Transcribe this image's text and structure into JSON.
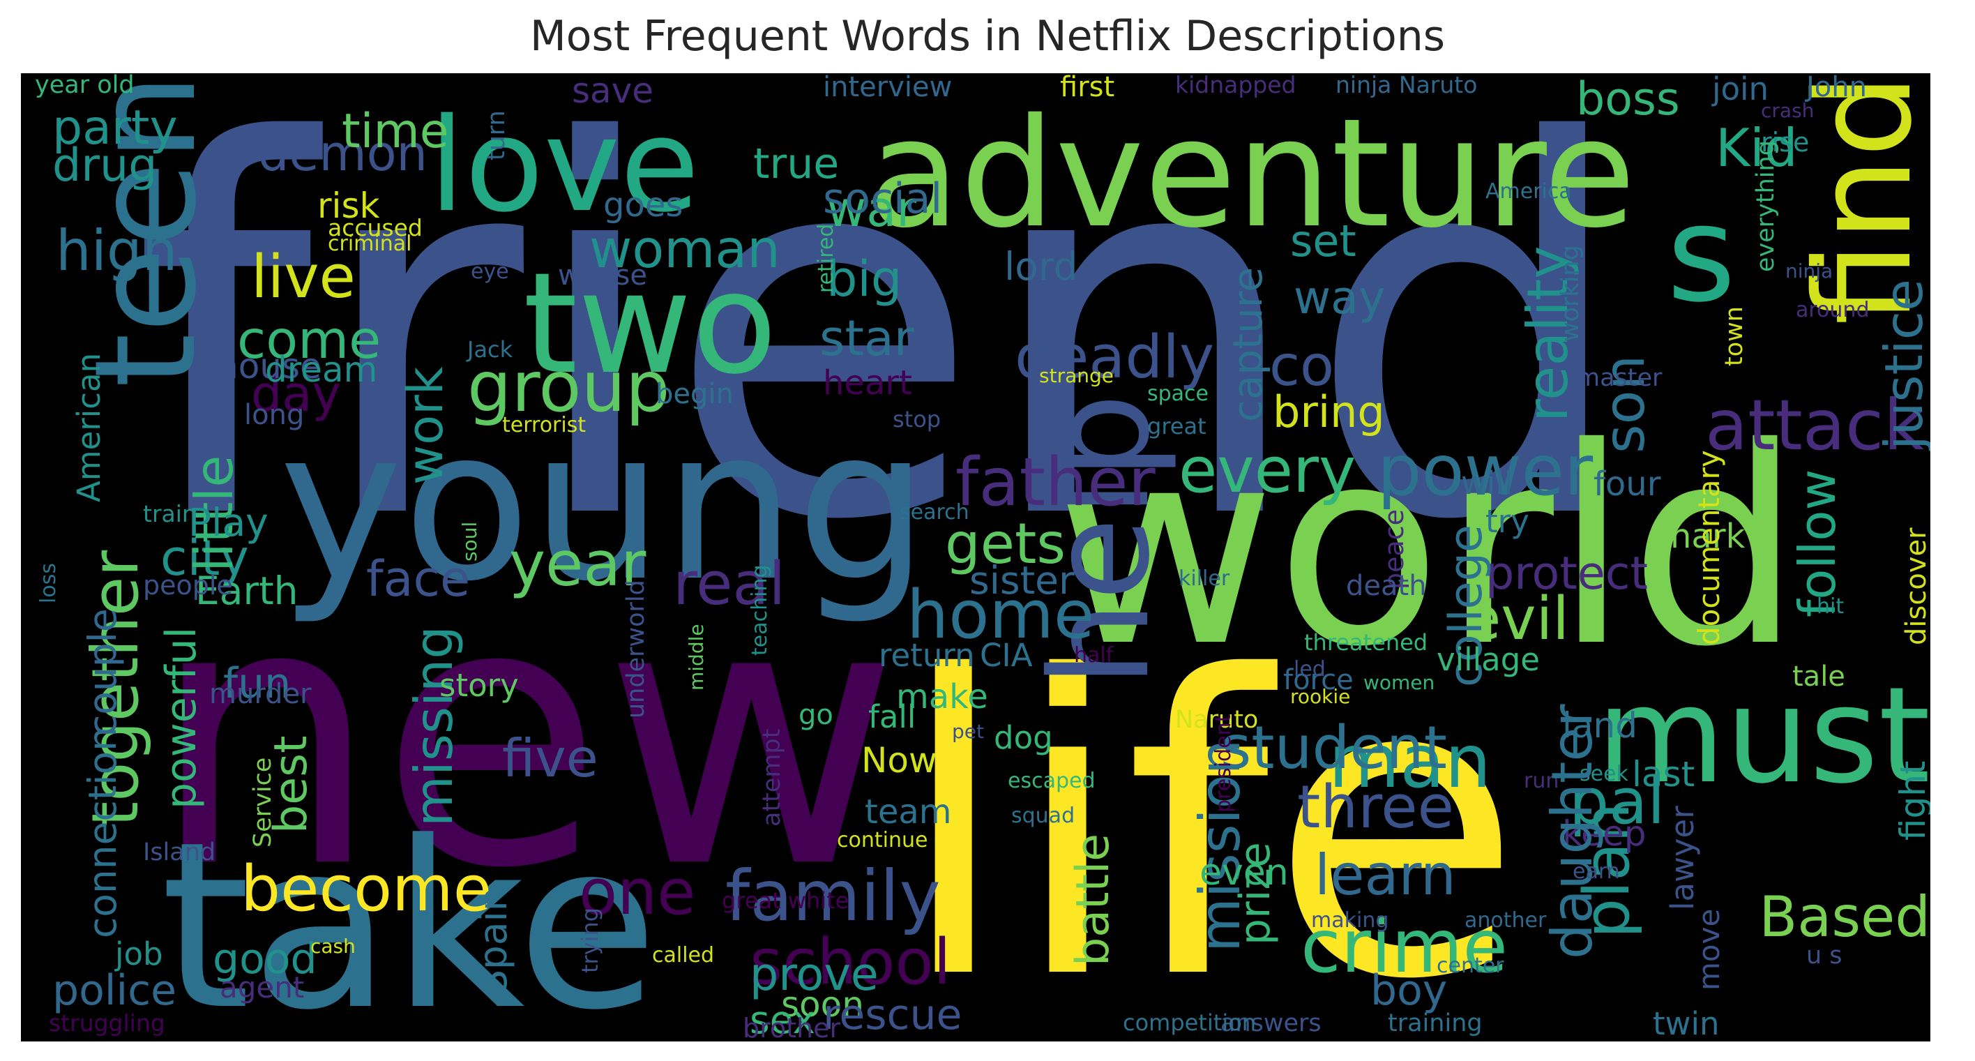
{
  "title": "Most Frequent Words in Netflix Descriptions",
  "palette": {
    "viridis_purple": "#440154",
    "viridis_indigo": "#472d7b",
    "viridis_blue": "#3b528b",
    "viridis_steel": "#2c728e",
    "viridis_teal": "#21918c",
    "viridis_green": "#28ae80",
    "viridis_lime": "#5ec962",
    "viridis_yellowgreen": "#addc30",
    "viridis_yellow": "#fde725"
  },
  "words": [
    {
      "text": "friend",
      "color": "#3b528b"
    },
    {
      "text": "new",
      "color": "#440154"
    },
    {
      "text": "life",
      "color": "#fde725"
    },
    {
      "text": "world",
      "color": "#7ad151"
    },
    {
      "text": "young",
      "color": "#31688e"
    },
    {
      "text": "take",
      "color": "#2c728e"
    },
    {
      "text": "adventure",
      "color": "#7ad151"
    },
    {
      "text": "love",
      "color": "#22a884"
    },
    {
      "text": "two",
      "color": "#35b779"
    },
    {
      "text": "teen",
      "color": "#2c728e"
    },
    {
      "text": "s",
      "color": "#22a884"
    },
    {
      "text": "find",
      "color": "#d2e21b"
    },
    {
      "text": "help",
      "color": "#3b528b"
    },
    {
      "text": "must",
      "color": "#35b779"
    },
    {
      "text": "family",
      "color": "#3b528b"
    },
    {
      "text": "school",
      "color": "#440154"
    },
    {
      "text": "man",
      "color": "#21918c"
    },
    {
      "text": "crime",
      "color": "#35b779"
    },
    {
      "text": "attack",
      "color": "#472d7b"
    },
    {
      "text": "father",
      "color": "#472d7b"
    },
    {
      "text": "power",
      "color": "#2c728e"
    },
    {
      "text": "every",
      "color": "#35b779"
    },
    {
      "text": "one",
      "color": "#440154"
    },
    {
      "text": "become",
      "color": "#fde725"
    },
    {
      "text": "together",
      "color": "#5ec962"
    },
    {
      "text": "group",
      "color": "#5ec962"
    },
    {
      "text": "deadly",
      "color": "#3b528b"
    },
    {
      "text": "home",
      "color": "#2c728e"
    },
    {
      "text": "year",
      "color": "#5ec962"
    },
    {
      "text": "real",
      "color": "#472d7b"
    },
    {
      "text": "live",
      "color": "#d2e21b"
    },
    {
      "text": "come",
      "color": "#35b779"
    },
    {
      "text": "day",
      "color": "#440154"
    },
    {
      "text": "work",
      "color": "#21918c"
    },
    {
      "text": "high",
      "color": "#2c728e"
    },
    {
      "text": "party",
      "color": "#21918c"
    },
    {
      "text": "drug",
      "color": "#21918c"
    },
    {
      "text": "demon",
      "color": "#3b528b"
    },
    {
      "text": "time",
      "color": "#5ec962"
    },
    {
      "text": "woman",
      "color": "#21918c"
    },
    {
      "text": "war",
      "color": "#35b779"
    },
    {
      "text": "big",
      "color": "#21918c"
    },
    {
      "text": "star",
      "color": "#2c728e"
    },
    {
      "text": "social",
      "color": "#31688e"
    },
    {
      "text": "true",
      "color": "#22a884"
    },
    {
      "text": "son",
      "color": "#2c728e"
    },
    {
      "text": "reality",
      "color": "#21918c"
    },
    {
      "text": "cop",
      "color": "#3b528b"
    },
    {
      "text": "way",
      "color": "#2c728e"
    },
    {
      "text": "set",
      "color": "#21918c"
    },
    {
      "text": "bring",
      "color": "#d2e21b"
    },
    {
      "text": "justice",
      "color": "#2c728e"
    },
    {
      "text": "Kid",
      "color": "#22a884"
    },
    {
      "text": "boss",
      "color": "#35b779"
    },
    {
      "text": "evil",
      "color": "#7ad151"
    },
    {
      "text": "follow",
      "color": "#22a884"
    },
    {
      "text": "protect",
      "color": "#472d7b"
    },
    {
      "text": "college",
      "color": "#2c728e"
    },
    {
      "text": "gets",
      "color": "#5ec962"
    },
    {
      "text": "sister",
      "color": "#31688e"
    },
    {
      "text": "student",
      "color": "#2c728e"
    },
    {
      "text": "three",
      "color": "#3b528b"
    },
    {
      "text": "learn",
      "color": "#31688e"
    },
    {
      "text": "pal",
      "color": "#21918c"
    },
    {
      "text": "plan",
      "color": "#21918c"
    },
    {
      "text": "Based",
      "color": "#7ad151"
    },
    {
      "text": "mission",
      "color": "#2c728e"
    },
    {
      "text": "prize",
      "color": "#35b779"
    },
    {
      "text": "battle",
      "color": "#7ad151"
    },
    {
      "text": "prove",
      "color": "#21918c"
    },
    {
      "text": "five",
      "color": "#3b528b"
    },
    {
      "text": "missing",
      "color": "#21918c"
    },
    {
      "text": "face",
      "color": "#3b528b"
    },
    {
      "text": "city",
      "color": "#21918c"
    },
    {
      "text": "little",
      "color": "#35b779"
    },
    {
      "text": "Earth",
      "color": "#35b779"
    },
    {
      "text": "Play",
      "color": "#21918c"
    },
    {
      "text": "best",
      "color": "#5ec962"
    },
    {
      "text": "fun",
      "color": "#2c728e"
    },
    {
      "text": "powerful",
      "color": "#35b779"
    },
    {
      "text": "connection",
      "color": "#2c728e"
    },
    {
      "text": "couple",
      "color": "#31688e"
    },
    {
      "text": "police",
      "color": "#31688e"
    },
    {
      "text": "job",
      "color": "#21918c"
    },
    {
      "text": "good",
      "color": "#21918c"
    },
    {
      "text": "Spain",
      "color": "#2c728e"
    },
    {
      "text": "house",
      "color": "#3b528b"
    },
    {
      "text": "dream",
      "color": "#21918c"
    },
    {
      "text": "American",
      "color": "#21918c"
    },
    {
      "text": "risk",
      "color": "#d2e21b"
    },
    {
      "text": "lord",
      "color": "#31688e"
    },
    {
      "text": "capture",
      "color": "#2c728e"
    },
    {
      "text": "save",
      "color": "#472d7b"
    },
    {
      "text": "goes",
      "color": "#31688e"
    },
    {
      "text": "heart",
      "color": "#440154"
    },
    {
      "text": "first",
      "color": "#d2e21b"
    },
    {
      "text": "interview",
      "color": "#31688e"
    },
    {
      "text": "year old",
      "color": "#35b779"
    },
    {
      "text": "kidnapped",
      "color": "#472d7b"
    },
    {
      "text": "ninja Naruto",
      "color": "#31688e"
    },
    {
      "text": "join",
      "color": "#31688e"
    },
    {
      "text": "John",
      "color": "#31688e"
    },
    {
      "text": "crash",
      "color": "#472d7b"
    },
    {
      "text": "rise",
      "color": "#21918c"
    },
    {
      "text": "turn",
      "color": "#31688e"
    },
    {
      "text": "America",
      "color": "#2c728e"
    },
    {
      "text": "accused",
      "color": "#d2e21b"
    },
    {
      "text": "criminal",
      "color": "#d2e21b"
    },
    {
      "text": "eye",
      "color": "#3b528b"
    },
    {
      "text": "whose",
      "color": "#3b528b"
    },
    {
      "text": "retired",
      "color": "#35b779"
    },
    {
      "text": "Jack",
      "color": "#2c728e"
    },
    {
      "text": "begin",
      "color": "#2c728e"
    },
    {
      "text": "long",
      "color": "#3b528b"
    },
    {
      "text": "terrorist",
      "color": "#d2e21b"
    },
    {
      "text": "stop",
      "color": "#3b528b"
    },
    {
      "text": "strange",
      "color": "#d2e21b"
    },
    {
      "text": "space",
      "color": "#35b779"
    },
    {
      "text": "great",
      "color": "#2c728e"
    },
    {
      "text": "working",
      "color": "#2c728e"
    },
    {
      "text": "master",
      "color": "#3b528b"
    },
    {
      "text": "town",
      "color": "#d2e21b"
    },
    {
      "text": "everything",
      "color": "#35b779"
    },
    {
      "text": "ninja",
      "color": "#3b528b"
    },
    {
      "text": "around",
      "color": "#472d7b"
    },
    {
      "text": "will",
      "color": "#31688e"
    },
    {
      "text": "try",
      "color": "#2c728e"
    },
    {
      "text": "four",
      "color": "#31688e"
    },
    {
      "text": "shark",
      "color": "#7ad151"
    },
    {
      "text": "documentary",
      "color": "#d2e21b"
    },
    {
      "text": "discover",
      "color": "#d2e21b"
    },
    {
      "text": "hit",
      "color": "#21918c"
    },
    {
      "text": "village",
      "color": "#35b779"
    },
    {
      "text": "tale",
      "color": "#7ad151"
    },
    {
      "text": "land",
      "color": "#2c728e"
    },
    {
      "text": "last",
      "color": "#21918c"
    },
    {
      "text": "run",
      "color": "#472d7b"
    },
    {
      "text": "keep",
      "color": "#472d7b"
    },
    {
      "text": "fight",
      "color": "#21918c"
    },
    {
      "text": "seek",
      "color": "#21918c"
    },
    {
      "text": "lawyer",
      "color": "#3b528b"
    },
    {
      "text": "daughter",
      "color": "#2c728e"
    },
    {
      "text": "boy",
      "color": "#31688e"
    },
    {
      "text": "twin",
      "color": "#2c728e"
    },
    {
      "text": "move",
      "color": "#3b528b"
    },
    {
      "text": "u s",
      "color": "#3b528b"
    },
    {
      "text": "training",
      "color": "#2c728e"
    },
    {
      "text": "answers",
      "color": "#3b528b"
    },
    {
      "text": "center",
      "color": "#2c728e"
    },
    {
      "text": "another",
      "color": "#31688e"
    },
    {
      "text": "making",
      "color": "#3b528b"
    },
    {
      "text": "earn",
      "color": "#3b528b"
    },
    {
      "text": "even",
      "color": "#35b779"
    },
    {
      "text": "force",
      "color": "#31688e"
    },
    {
      "text": "threatened",
      "color": "#35b779"
    },
    {
      "text": "led",
      "color": "#3b528b"
    },
    {
      "text": "rookie",
      "color": "#d2e21b"
    },
    {
      "text": "women",
      "color": "#35b779"
    },
    {
      "text": "peace",
      "color": "#472d7b"
    },
    {
      "text": "killer",
      "color": "#31688e"
    },
    {
      "text": "death",
      "color": "#3b528b"
    },
    {
      "text": "dog",
      "color": "#35b779"
    },
    {
      "text": "CIA",
      "color": "#2c728e"
    },
    {
      "text": "return",
      "color": "#2c728e"
    },
    {
      "text": "make",
      "color": "#35b779"
    },
    {
      "text": "go",
      "color": "#35b779"
    },
    {
      "text": "Naruto",
      "color": "#d2e21b"
    },
    {
      "text": "half",
      "color": "#440154"
    },
    {
      "text": "pet",
      "color": "#3b528b"
    },
    {
      "text": "escaped",
      "color": "#35b779"
    },
    {
      "text": "squad",
      "color": "#2c728e"
    },
    {
      "text": "president",
      "color": "#440154"
    },
    {
      "text": "fall",
      "color": "#35b779"
    },
    {
      "text": "Now",
      "color": "#d2e21b"
    },
    {
      "text": "team",
      "color": "#2c728e"
    },
    {
      "text": "continue",
      "color": "#d2e21b"
    },
    {
      "text": "great white",
      "color": "#440154"
    },
    {
      "text": "soon",
      "color": "#5ec962"
    },
    {
      "text": "sex",
      "color": "#35b779"
    },
    {
      "text": "rescue",
      "color": "#3b528b"
    },
    {
      "text": "brother",
      "color": "#472d7b"
    },
    {
      "text": "competition",
      "color": "#2c728e"
    },
    {
      "text": "called",
      "color": "#d2e21b"
    },
    {
      "text": "cash",
      "color": "#d2e21b"
    },
    {
      "text": "trying",
      "color": "#3b528b"
    },
    {
      "text": "agent",
      "color": "#472d7b"
    },
    {
      "text": "struggling",
      "color": "#440154"
    },
    {
      "text": "Island",
      "color": "#3b528b"
    },
    {
      "text": "Service",
      "color": "#7ad151"
    },
    {
      "text": "attempt",
      "color": "#472d7b"
    },
    {
      "text": "middle",
      "color": "#5ec962"
    },
    {
      "text": "underworld",
      "color": "#3b528b"
    },
    {
      "text": "story",
      "color": "#5ec962"
    },
    {
      "text": "murder",
      "color": "#3b528b"
    },
    {
      "text": "people",
      "color": "#3b528b"
    },
    {
      "text": "loss",
      "color": "#2c728e"
    },
    {
      "text": "train",
      "color": "#21918c"
    },
    {
      "text": "soul",
      "color": "#5ec962"
    },
    {
      "text": "teaching",
      "color": "#21918c"
    },
    {
      "text": "search",
      "color": "#2c728e"
    }
  ]
}
